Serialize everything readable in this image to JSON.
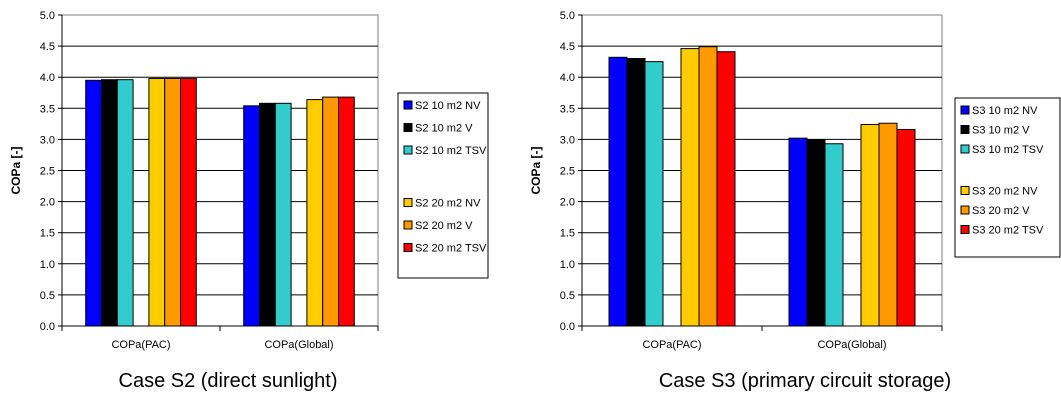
{
  "chart_data": [
    {
      "type": "bar",
      "title": "",
      "caption": "Case S2 (direct sunlight)",
      "xlabel": "",
      "ylabel": "COPa [-]",
      "ylim": [
        0,
        5
      ],
      "yticks": [
        "0.0",
        "0.5",
        "1.0",
        "1.5",
        "2.0",
        "2.5",
        "3.0",
        "3.5",
        "4.0",
        "4.5",
        "5.0"
      ],
      "categories": [
        "COPa(PAC)",
        "COPa(Global)"
      ],
      "grid": true,
      "legend_position": "right",
      "series": [
        {
          "name": "S2 10 m2 NV",
          "color": "#0000FF",
          "values": [
            3.95,
            3.54
          ]
        },
        {
          "name": "S2 10 m2 V",
          "color": "#000000",
          "values": [
            3.96,
            3.58
          ]
        },
        {
          "name": "S2 10 m2 TSV",
          "color": "#33CCCC",
          "values": [
            3.96,
            3.58
          ]
        },
        {
          "name": "S2 20 m2 NV",
          "color": "#FFCC00",
          "values": [
            3.98,
            3.64
          ]
        },
        {
          "name": "S2 20 m2 V",
          "color": "#FF9900",
          "values": [
            3.98,
            3.68
          ]
        },
        {
          "name": "S2 20 m2 TSV",
          "color": "#FF0000",
          "values": [
            3.98,
            3.68
          ]
        }
      ]
    },
    {
      "type": "bar",
      "title": "",
      "caption": "Case S3 (primary circuit storage)",
      "xlabel": "",
      "ylabel": "COPa [-]",
      "ylim": [
        0,
        5
      ],
      "yticks": [
        "0.0",
        "0.5",
        "1.0",
        "1.5",
        "2.0",
        "2.5",
        "3.0",
        "3.5",
        "4.0",
        "4.5",
        "5.0"
      ],
      "categories": [
        "COPa(PAC)",
        "COPa(Global)"
      ],
      "grid": true,
      "legend_position": "right",
      "series": [
        {
          "name": "S3 10 m2 NV",
          "color": "#0000FF",
          "values": [
            4.32,
            3.02
          ]
        },
        {
          "name": "S3 10 m2 V",
          "color": "#000000",
          "values": [
            4.3,
            2.99
          ]
        },
        {
          "name": "S3 10 m2 TSV",
          "color": "#33CCCC",
          "values": [
            4.25,
            2.93
          ]
        },
        {
          "name": "S3 20 m2 NV",
          "color": "#FFCC00",
          "values": [
            4.46,
            3.24
          ]
        },
        {
          "name": "S3 20 m2 V",
          "color": "#FF9900",
          "values": [
            4.49,
            3.26
          ]
        },
        {
          "name": "S3 20 m2 TSV",
          "color": "#FF0000",
          "values": [
            4.41,
            3.16
          ]
        }
      ]
    }
  ]
}
